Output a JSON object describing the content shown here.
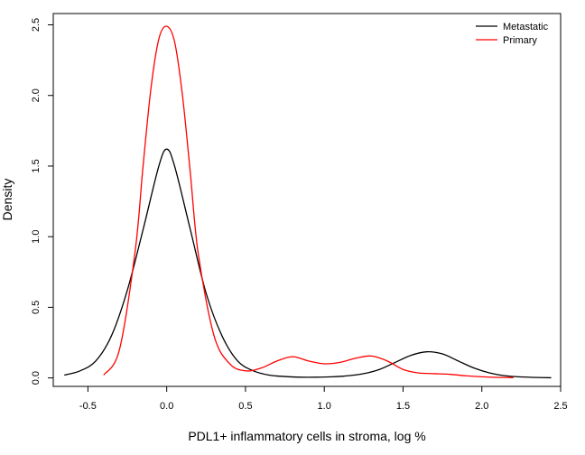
{
  "chart_data": {
    "type": "line",
    "title": "",
    "xlabel": "PDL1+ inflammatory cells in stroma, log %",
    "ylabel": "Density",
    "xlim": [
      -0.72,
      2.5
    ],
    "ylim": [
      -0.06,
      2.58
    ],
    "x_ticks": [
      -0.5,
      0.0,
      0.5,
      1.0,
      1.5,
      2.0,
      2.5
    ],
    "x_tick_labels": [
      "-0.5",
      "0.0",
      "0.5",
      "1.0",
      "1.5",
      "2.0",
      "2.5"
    ],
    "y_ticks": [
      0.0,
      0.5,
      1.0,
      1.5,
      2.0,
      2.5
    ],
    "y_tick_labels": [
      "0.0",
      "0.5",
      "1.0",
      "1.5",
      "2.0",
      "2.5"
    ],
    "grid": false,
    "legend": {
      "position": "top-right",
      "entries": [
        "Metastatic",
        "Primary"
      ]
    },
    "series": [
      {
        "name": "Metastatic",
        "color": "#000000",
        "x": [
          -0.65,
          -0.55,
          -0.45,
          -0.35,
          -0.25,
          -0.15,
          -0.05,
          0.0,
          0.05,
          0.15,
          0.25,
          0.35,
          0.45,
          0.55,
          0.65,
          0.75,
          0.85,
          0.95,
          1.05,
          1.15,
          1.25,
          1.35,
          1.45,
          1.55,
          1.65,
          1.75,
          1.85,
          1.95,
          2.05,
          2.15,
          2.25,
          2.35,
          2.44
        ],
        "y": [
          0.02,
          0.05,
          0.12,
          0.3,
          0.62,
          1.05,
          1.5,
          1.62,
          1.5,
          1.05,
          0.6,
          0.3,
          0.12,
          0.05,
          0.02,
          0.01,
          0.005,
          0.005,
          0.008,
          0.015,
          0.03,
          0.06,
          0.11,
          0.16,
          0.185,
          0.17,
          0.12,
          0.07,
          0.035,
          0.015,
          0.007,
          0.003,
          0.001
        ]
      },
      {
        "name": "Primary",
        "color": "#FF0000",
        "x": [
          -0.4,
          -0.3,
          -0.2,
          -0.15,
          -0.1,
          -0.05,
          0.0,
          0.05,
          0.1,
          0.15,
          0.2,
          0.3,
          0.4,
          0.5,
          0.6,
          0.7,
          0.8,
          0.9,
          1.0,
          1.1,
          1.2,
          1.3,
          1.4,
          1.5,
          1.6,
          1.7,
          1.8,
          1.9,
          2.0,
          2.1,
          2.2
        ],
        "y": [
          0.02,
          0.2,
          0.9,
          1.5,
          2.05,
          2.4,
          2.49,
          2.38,
          2.0,
          1.45,
          0.88,
          0.3,
          0.1,
          0.05,
          0.07,
          0.12,
          0.15,
          0.12,
          0.1,
          0.11,
          0.14,
          0.155,
          0.12,
          0.06,
          0.035,
          0.03,
          0.025,
          0.015,
          0.008,
          0.004,
          0.002
        ]
      }
    ]
  }
}
